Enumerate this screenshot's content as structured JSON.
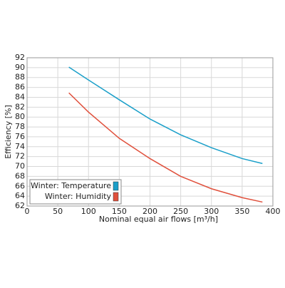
{
  "chart_data": {
    "type": "line",
    "x_label": "Nominal equal air flows [m³/h]",
    "y_label": "Efficiency [%]",
    "xlim": [
      0,
      400
    ],
    "xticks": [
      0,
      50,
      100,
      150,
      200,
      250,
      300,
      350,
      400
    ],
    "ylim": [
      62,
      92
    ],
    "yticks": [
      62,
      64,
      66,
      68,
      70,
      72,
      74,
      76,
      78,
      80,
      82,
      84,
      86,
      88,
      90,
      92
    ],
    "grid": true,
    "legend": "lower left",
    "x": [
      68,
      100,
      150,
      200,
      250,
      300,
      350,
      383
    ],
    "series": [
      {
        "name": "Winter: Temperature",
        "color": "#1a9fc9",
        "values": [
          90.1,
          87.5,
          83.5,
          79.6,
          76.4,
          73.8,
          71.6,
          70.6
        ]
      },
      {
        "name": "Winter: Humidity",
        "color": "#e0503c",
        "values": [
          84.9,
          81.0,
          75.7,
          71.6,
          68.0,
          65.5,
          63.7,
          62.8
        ]
      }
    ]
  }
}
